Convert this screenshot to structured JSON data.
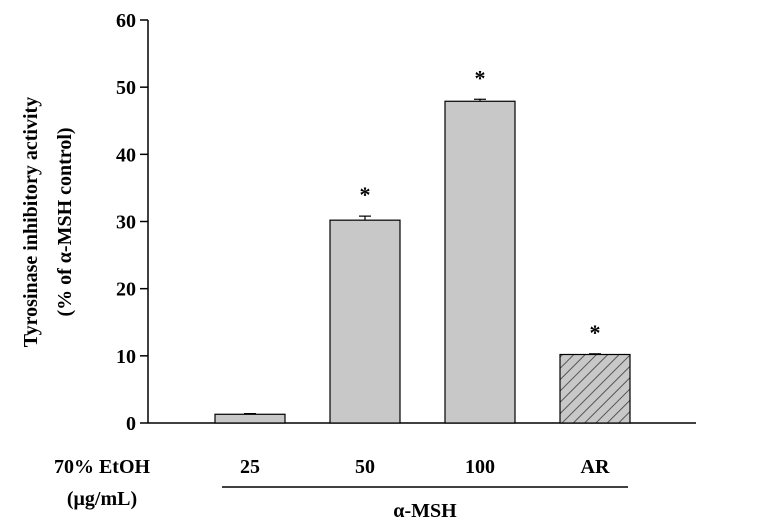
{
  "chart_data": {
    "type": "bar",
    "title": "",
    "ylabel": [
      "Tyrosinase inhibitory activity",
      "(% of α-MSH control)"
    ],
    "ylim": [
      0,
      60
    ],
    "yticks": [
      0,
      10,
      20,
      30,
      40,
      50,
      60
    ],
    "x_row_label": [
      "70% EtOH",
      "(μg/mL)"
    ],
    "group_label": "α-MSH",
    "categories": [
      "25",
      "50",
      "100",
      "AR"
    ],
    "values": [
      1.3,
      30.2,
      47.9,
      10.2
    ],
    "errors": [
      0.1,
      0.6,
      0.3,
      0.1
    ],
    "significance": [
      "",
      "*",
      "*",
      "*"
    ],
    "bar_fill": [
      "#c8c8c8",
      "#c8c8c8",
      "#c8c8c8",
      "hatched"
    ],
    "grid": false,
    "colors": {
      "bar": "#c8c8c8",
      "hatch": "#555555",
      "axis": "#000000"
    }
  }
}
